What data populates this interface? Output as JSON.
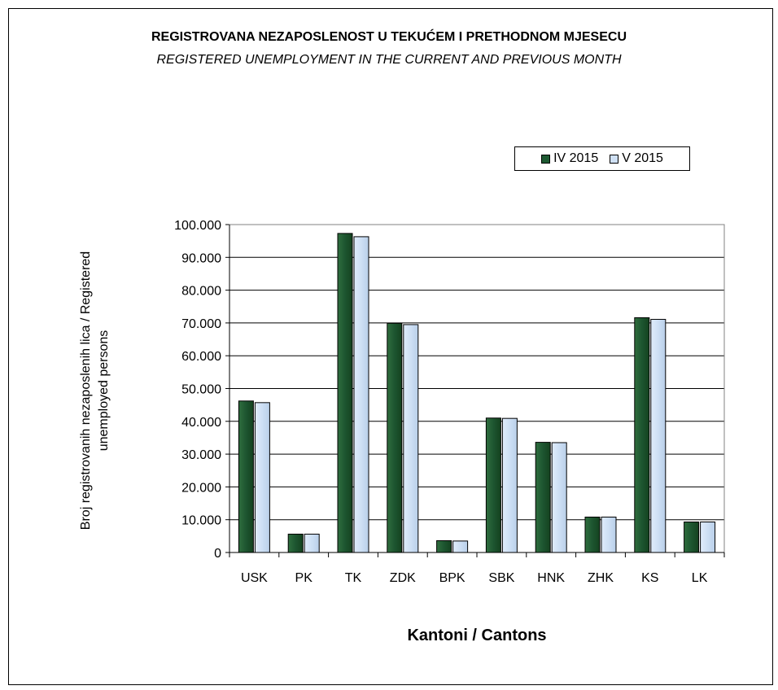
{
  "chart_data": {
    "type": "bar",
    "title": "REGISTROVANA NEZAPOSLENOST U TEKUĆEM I PRETHODNOM   MJESECU",
    "subtitle": "REGISTERED UNEMPLOYMENT IN THE CURRENT AND PREVIOUS MONTH",
    "xlabel": "Kantoni / Cantons",
    "ylabel_line1": "Broj registrovanih nezaposlenih lica / Registered",
    "ylabel_line2": "unemployed persons",
    "categories": [
      "USK",
      "PK",
      "TK",
      "ZDK",
      "BPK",
      "SBK",
      "HNK",
      "ZHK",
      "KS",
      "LK"
    ],
    "series": [
      {
        "name": "IV 2015",
        "color": "#1e5a32",
        "values": [
          46200,
          5600,
          97300,
          69900,
          3600,
          41000,
          33600,
          10800,
          71600,
          9300
        ]
      },
      {
        "name": "V 2015",
        "color": "#cfe0f4",
        "values": [
          45700,
          5600,
          96300,
          69500,
          3500,
          40900,
          33500,
          10800,
          71100,
          9300
        ]
      }
    ],
    "ylim": [
      0,
      100000
    ],
    "yticks": [
      "0",
      "10.000",
      "20.000",
      "30.000",
      "40.000",
      "50.000",
      "60.000",
      "70.000",
      "80.000",
      "90.000",
      "100.000"
    ],
    "grid": true,
    "legend_position": "top-right"
  }
}
